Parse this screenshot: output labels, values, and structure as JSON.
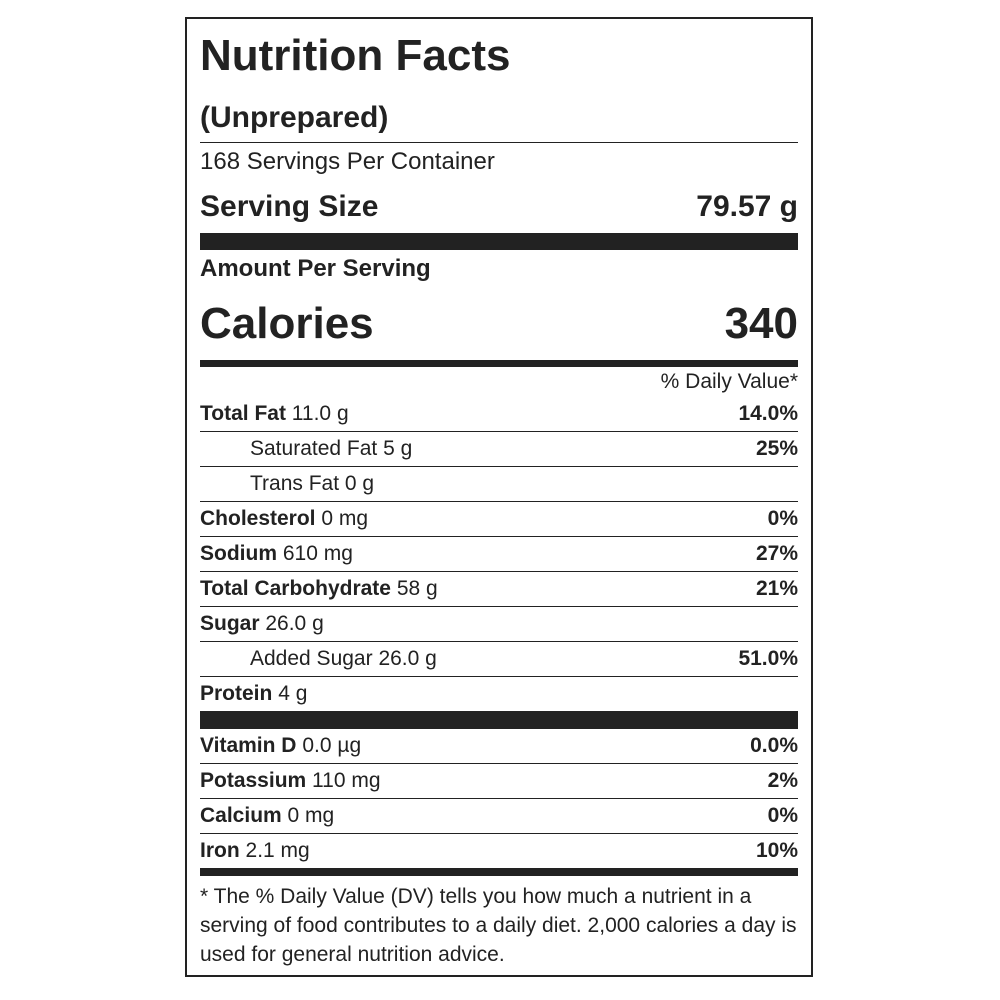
{
  "header": {
    "title": "Nutrition Facts",
    "subtitle": "(Unprepared)",
    "servings": "168 Servings Per Container",
    "serving_size": {
      "label": "Serving Size",
      "value": "79.57 g"
    }
  },
  "calories": {
    "heading": "Amount Per Serving",
    "label": "Calories",
    "value": "340"
  },
  "daily_value_heading": "% Daily Value*",
  "nutrients": [
    {
      "name": "Total Fat",
      "amount": "11.0 g",
      "dv": "14.0%"
    },
    {
      "name": "Saturated Fat",
      "amount": "5 g",
      "dv": "25%"
    },
    {
      "name": "Trans Fat",
      "amount": "0 g"
    },
    {
      "name": "Cholesterol",
      "amount": "0 mg",
      "dv": "0%"
    },
    {
      "name": "Sodium",
      "amount": "610 mg",
      "dv": "27%"
    },
    {
      "name": "Total Carbohydrate",
      "amount": "58 g",
      "dv": "21%"
    },
    {
      "name": "Sugar",
      "amount": "26.0 g"
    },
    {
      "name": "Added Sugar",
      "amount": "26.0 g",
      "dv": "51.0%"
    },
    {
      "name": "Protein",
      "amount": "4 g"
    }
  ],
  "vitamins": [
    {
      "name": "Vitamin D",
      "amount": "0.0 µg",
      "dv": "0.0%"
    },
    {
      "name": "Potassium",
      "amount": "110 mg",
      "dv": "2%"
    },
    {
      "name": "Calcium",
      "amount": "0 mg",
      "dv": "0%"
    },
    {
      "name": "Iron",
      "amount": "2.1 mg",
      "dv": "10%"
    }
  ],
  "footnote": "* The % Daily Value (DV) tells you how much a nutrient in a serving of food contributes to a daily diet. 2,000 calories a day is used for general nutrition advice."
}
